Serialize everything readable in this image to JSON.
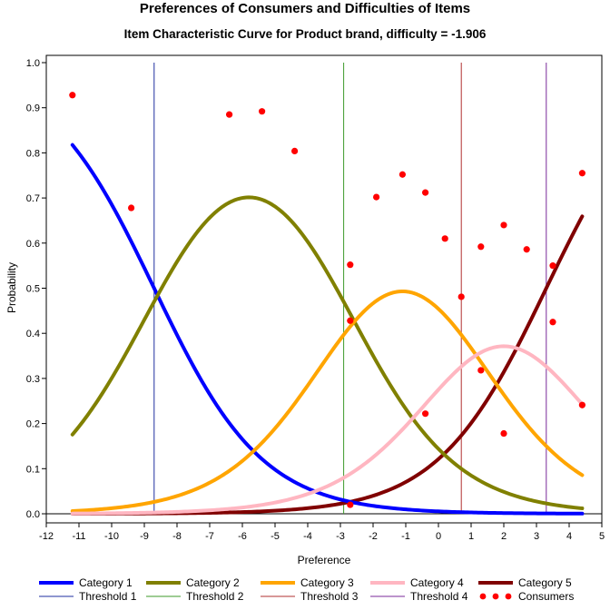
{
  "chart_data": {
    "type": "line",
    "title": "Preferences of Consumers and Difficulties of Items",
    "subtitle": "Item Characteristic Curve for Product brand, difficulty = -1.906",
    "xlabel": "Preference",
    "ylabel": "Probability",
    "xlim": [
      -12,
      5
    ],
    "ylim": [
      0,
      1
    ],
    "xticks": [
      "-12",
      "-11",
      "-10",
      "-9",
      "-8",
      "-7",
      "-6",
      "-5",
      "-4",
      "-3",
      "-2",
      "-1",
      "0",
      "1",
      "2",
      "3",
      "4",
      "5"
    ],
    "yticks": [
      "0.0",
      "0.1",
      "0.2",
      "0.3",
      "0.4",
      "0.5",
      "0.6",
      "0.7",
      "0.8",
      "0.9",
      "1.0"
    ],
    "grid": false,
    "legend_position": "bottom",
    "thresholds": [
      {
        "name": "Threshold 1",
        "x": -8.7,
        "color": "#1f2fa0"
      },
      {
        "name": "Threshold 2",
        "x": -2.9,
        "color": "#3c9a2a"
      },
      {
        "name": "Threshold 3",
        "x": 0.7,
        "color": "#b03030"
      },
      {
        "name": "Threshold 4",
        "x": 3.3,
        "color": "#7a2a9a"
      }
    ],
    "x_range": [
      -11.2,
      4.4
    ],
    "series": [
      {
        "name": "Category 1",
        "color": "#0000ff"
      },
      {
        "name": "Category 2",
        "color": "#808000"
      },
      {
        "name": "Category 3",
        "color": "#ffa500"
      },
      {
        "name": "Category 4",
        "color": "#ffb6c1"
      },
      {
        "name": "Category 5",
        "color": "#800000"
      }
    ],
    "consumers": {
      "name": "Consumers",
      "color": "#ff0000",
      "points": [
        {
          "x": -11.2,
          "y": 0.928
        },
        {
          "x": -9.4,
          "y": 0.678
        },
        {
          "x": -6.4,
          "y": 0.885
        },
        {
          "x": -5.4,
          "y": 0.892
        },
        {
          "x": -4.4,
          "y": 0.804
        },
        {
          "x": -2.7,
          "y": 0.552
        },
        {
          "x": -2.7,
          "y": 0.428
        },
        {
          "x": -2.7,
          "y": 0.02
        },
        {
          "x": -1.9,
          "y": 0.702
        },
        {
          "x": -1.1,
          "y": 0.752
        },
        {
          "x": -0.4,
          "y": 0.712
        },
        {
          "x": -0.4,
          "y": 0.222
        },
        {
          "x": 0.2,
          "y": 0.61
        },
        {
          "x": 0.7,
          "y": 0.481
        },
        {
          "x": 1.3,
          "y": 0.592
        },
        {
          "x": 1.3,
          "y": 0.318
        },
        {
          "x": 2.0,
          "y": 0.64
        },
        {
          "x": 2.0,
          "y": 0.178
        },
        {
          "x": 2.7,
          "y": 0.586
        },
        {
          "x": 3.5,
          "y": 0.55
        },
        {
          "x": 3.5,
          "y": 0.425
        },
        {
          "x": 4.4,
          "y": 0.755
        },
        {
          "x": 4.4,
          "y": 0.241
        }
      ]
    },
    "legend": [
      {
        "label": "Category 1",
        "kind": "thick",
        "color": "#0000ff"
      },
      {
        "label": "Category 2",
        "kind": "thick",
        "color": "#808000"
      },
      {
        "label": "Category 3",
        "kind": "thick",
        "color": "#ffa500"
      },
      {
        "label": "Category 4",
        "kind": "thick",
        "color": "#ffb6c1"
      },
      {
        "label": "Category 5",
        "kind": "thick",
        "color": "#800000"
      },
      {
        "label": "Threshold 1",
        "kind": "thin",
        "color": "#1f2fa0"
      },
      {
        "label": "Threshold 2",
        "kind": "thin",
        "color": "#3c9a2a"
      },
      {
        "label": "Threshold 3",
        "kind": "thin",
        "color": "#b03030"
      },
      {
        "label": "Threshold 4",
        "kind": "thin",
        "color": "#7a2a9a"
      },
      {
        "label": "Consumers",
        "kind": "dots",
        "color": "#ff0000"
      }
    ]
  }
}
